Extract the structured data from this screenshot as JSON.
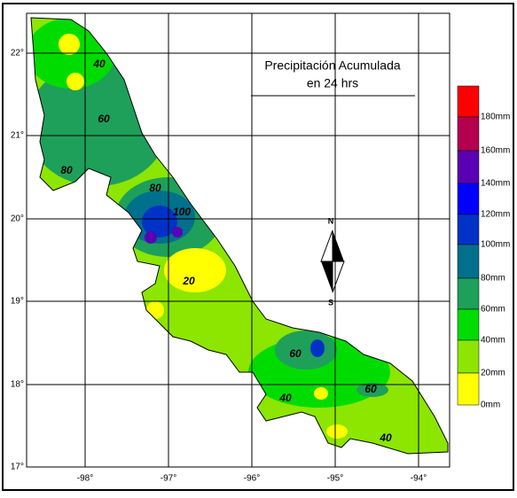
{
  "title": [
    "Precipitación Acumulada",
    "en 24 hrs"
  ],
  "lat_labels": [
    "22°",
    "21°",
    "20°",
    "19°",
    "18°",
    "17°"
  ],
  "lon_labels": [
    "-98°",
    "-97°",
    "-96°",
    "-95°",
    "-94°"
  ],
  "legend": {
    "labels": [
      "180mm",
      "160mm",
      "140mm",
      "120mm",
      "100mm",
      "80mm",
      "60mm",
      "40mm",
      "20mm",
      "0mm"
    ],
    "colors": [
      "#ff0000",
      "#b4004e",
      "#5a00b4",
      "#0000ff",
      "#0032c8",
      "#00708c",
      "#1ea05a",
      "#00dc00",
      "#8ce600",
      "#ffff00"
    ]
  },
  "contour_labels": [
    "40",
    "60",
    "80",
    "80",
    "100",
    "20",
    "60",
    "40",
    "60",
    "40"
  ],
  "compass": [
    "N",
    "S"
  ]
}
